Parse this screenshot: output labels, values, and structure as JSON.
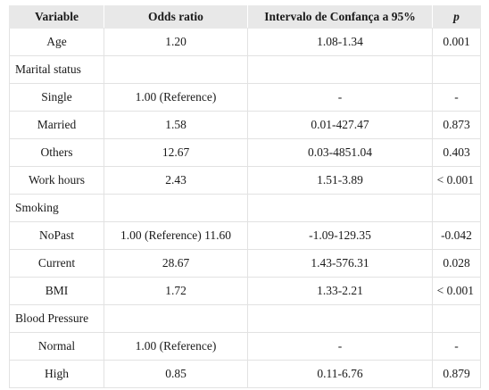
{
  "table": {
    "headers": [
      "Variable",
      "Odds ratio",
      "Intervalo de Confança a 95%",
      "p"
    ],
    "rows": [
      [
        "Age",
        "1.20",
        "1.08-1.34",
        "0.001"
      ],
      [
        "Marital status",
        "",
        "",
        ""
      ],
      [
        "Single",
        "1.00 (Reference)",
        "-",
        "-"
      ],
      [
        "Married",
        "1.58",
        "0.01-427.47",
        "0.873"
      ],
      [
        "Others",
        "12.67",
        "0.03-4851.04",
        "0.403"
      ],
      [
        "Work hours",
        "2.43",
        "1.51-3.89",
        "< 0.001"
      ],
      [
        "Smoking",
        "",
        "",
        ""
      ],
      [
        "NoPast",
        "1.00 (Reference) 11.60",
        "-1.09-129.35",
        "-0.042"
      ],
      [
        "Current",
        "28.67",
        "1.43-576.31",
        "0.028"
      ],
      [
        "BMI",
        "1.72",
        "1.33-2.21",
        "< 0.001"
      ],
      [
        "Blood Pressure",
        "",
        "",
        ""
      ],
      [
        "Normal",
        "1.00 (Reference)",
        "-",
        "-"
      ],
      [
        "High",
        "0.85",
        "0.11-6.76",
        "0.879"
      ]
    ]
  }
}
